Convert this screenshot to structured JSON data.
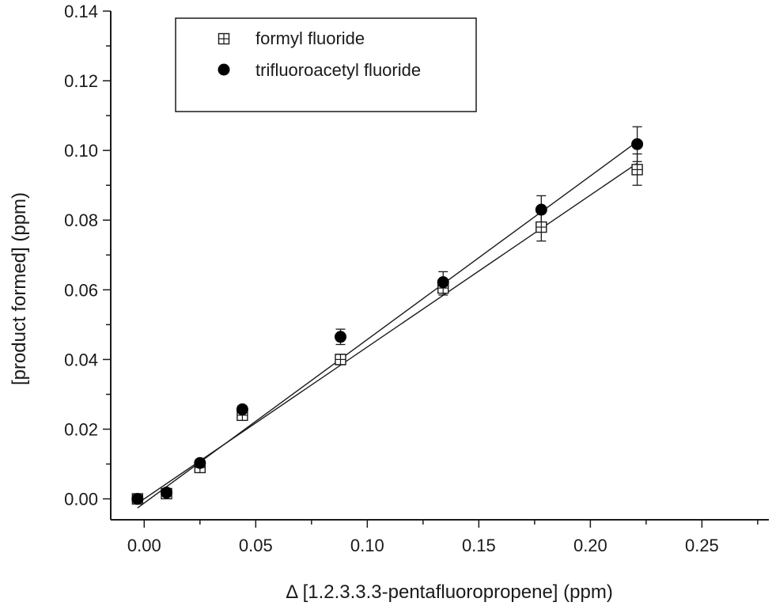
{
  "chart_data": {
    "type": "scatter",
    "xlabel": "Δ [1.2.3.3.3-pentafluoropropene] (ppm)",
    "ylabel": "[product formed] (ppm)",
    "xlim": [
      -0.015,
      0.28
    ],
    "ylim": [
      -0.006,
      0.14
    ],
    "xticks": [
      "0.00",
      "0.05",
      "0.10",
      "0.15",
      "0.20",
      "0.25"
    ],
    "xtick_values": [
      0.0,
      0.05,
      0.1,
      0.15,
      0.2,
      0.25
    ],
    "yticks": [
      "0.00",
      "0.02",
      "0.04",
      "0.06",
      "0.08",
      "0.10",
      "0.12",
      "0.14"
    ],
    "ytick_values": [
      0.0,
      0.02,
      0.04,
      0.06,
      0.08,
      0.1,
      0.12,
      0.14
    ],
    "grid": false,
    "legend_placement": "top-left",
    "series": [
      {
        "name": "formyl fluoride",
        "marker": "square-crosshair",
        "color": "#1a1a1a",
        "x": [
          -0.003,
          0.01,
          0.025,
          0.044,
          0.088,
          0.134,
          0.178,
          0.221
        ],
        "y": [
          0.0,
          0.0015,
          0.009,
          0.024,
          0.04,
          0.0605,
          0.078,
          0.0945
        ],
        "yerr": [
          0,
          0,
          0.001,
          0.001,
          0.0015,
          0.002,
          0.004,
          0.0045
        ],
        "fit": {
          "slope": 0.4359,
          "intercept": 0.0
        }
      },
      {
        "name": "trifluoroacetyl fluoride",
        "marker": "filled-circle",
        "color": "#000000",
        "x": [
          -0.003,
          0.01,
          0.025,
          0.044,
          0.088,
          0.134,
          0.178,
          0.221
        ],
        "y": [
          0.0,
          0.0018,
          0.0103,
          0.0257,
          0.0465,
          0.0622,
          0.083,
          0.1018
        ],
        "yerr": [
          0,
          0,
          0.0008,
          0.001,
          0.0022,
          0.003,
          0.004,
          0.005
        ],
        "fit": {
          "slope": 0.4694,
          "intercept": -0.0012
        }
      }
    ]
  }
}
